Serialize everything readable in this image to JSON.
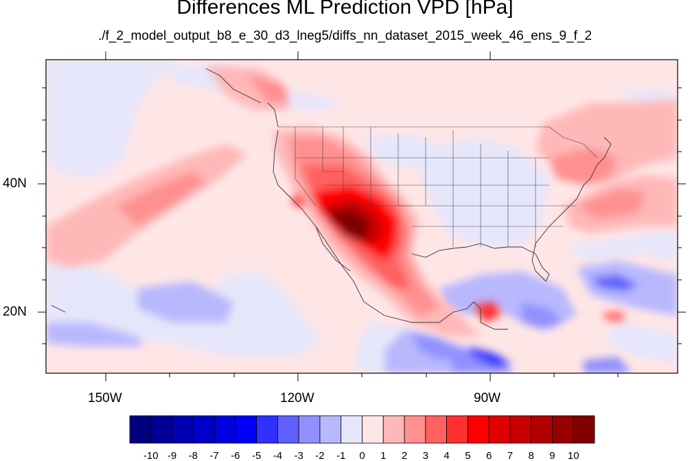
{
  "title": "Differences ML Prediction VPD [hPa]",
  "subtitle": "./f_2_model_output_b8_e_30_d3_lneg5/diffs_nn_dataset_2015_week_46_ens_9_f_2",
  "lon_labels": [
    "150W",
    "120W",
    "90W"
  ],
  "lat_labels": [
    "40N",
    "20N"
  ],
  "colorbar": {
    "labels": [
      "-10",
      "-9",
      "-8",
      "-7",
      "-6",
      "-5",
      "-4",
      "-3",
      "-2",
      "-1",
      "0",
      "1",
      "2",
      "3",
      "4",
      "5",
      "6",
      "7",
      "8",
      "9",
      "10"
    ],
    "colors": [
      "#000080",
      "#000098",
      "#0000b0",
      "#0000c8",
      "#0000e0",
      "#0000f8",
      "#3030ff",
      "#6060ff",
      "#9090ff",
      "#b8b8ff",
      "#e6e6fa",
      "#ffe6e6",
      "#ffb8b8",
      "#ff9090",
      "#ff6060",
      "#ff3030",
      "#ff0000",
      "#e00000",
      "#c80000",
      "#b00000",
      "#980000",
      "#800000"
    ]
  }
}
